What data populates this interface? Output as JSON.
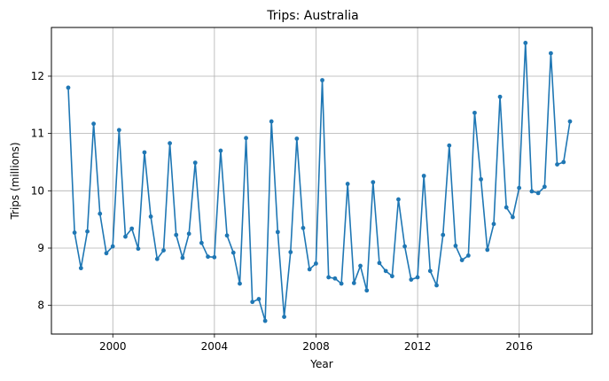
{
  "chart_data": {
    "type": "line",
    "title": "Trips: Australia",
    "xlabel": "Year",
    "ylabel": "Trips (millions)",
    "x_ticks": [
      "2000",
      "2004",
      "2008",
      "2012",
      "2016"
    ],
    "y_ticks": [
      "8",
      "9",
      "10",
      "11",
      "12"
    ],
    "xlim": [
      "1997-08-01",
      "2018-11-15"
    ],
    "ylim": [
      7.5,
      12.85
    ],
    "grid": true,
    "legend": "none",
    "series_color": "#1f77b4",
    "series": [
      {
        "x": [
          "1998-03-31",
          "1998-06-30",
          "1998-09-30",
          "1998-12-31",
          "1999-03-31",
          "1999-06-30",
          "1999-09-30",
          "1999-12-31",
          "2000-03-31",
          "2000-06-30",
          "2000-09-30",
          "2000-12-31",
          "2001-03-31",
          "2001-06-30",
          "2001-09-30",
          "2001-12-31",
          "2002-03-31",
          "2002-06-30",
          "2002-09-30",
          "2002-12-31",
          "2003-03-31",
          "2003-06-30",
          "2003-09-30",
          "2003-12-31",
          "2004-03-31",
          "2004-06-30",
          "2004-09-30",
          "2004-12-31",
          "2005-03-31",
          "2005-06-30",
          "2005-09-30",
          "2005-12-31",
          "2006-03-31",
          "2006-06-30",
          "2006-09-30",
          "2006-12-31",
          "2007-03-31",
          "2007-06-30",
          "2007-09-30",
          "2007-12-31",
          "2008-03-31",
          "2008-06-30",
          "2008-09-30",
          "2008-12-31",
          "2009-03-31",
          "2009-06-30",
          "2009-09-30",
          "2009-12-31",
          "2010-03-31",
          "2010-06-30",
          "2010-09-30",
          "2010-12-31",
          "2011-03-31",
          "2011-06-30",
          "2011-09-30",
          "2011-12-31",
          "2012-03-31",
          "2012-06-30",
          "2012-09-30",
          "2012-12-31",
          "2013-03-31",
          "2013-06-30",
          "2013-09-30",
          "2013-12-31",
          "2014-03-31",
          "2014-06-30",
          "2014-09-30",
          "2014-12-31",
          "2015-03-31",
          "2015-06-30",
          "2015-09-30",
          "2015-12-31",
          "2016-03-31",
          "2016-06-30",
          "2016-09-30",
          "2016-12-31",
          "2017-03-31",
          "2017-06-30",
          "2017-09-30",
          "2017-12-31"
        ],
        "values": [
          11.8,
          9.27,
          8.65,
          9.29,
          11.17,
          9.6,
          8.91,
          9.03,
          11.06,
          9.2,
          9.34,
          8.99,
          10.67,
          9.55,
          8.81,
          8.96,
          10.83,
          9.23,
          8.83,
          9.25,
          10.49,
          9.09,
          8.85,
          8.84,
          10.7,
          9.22,
          8.92,
          8.38,
          10.92,
          8.06,
          8.11,
          7.73,
          11.21,
          9.28,
          7.8,
          8.93,
          10.91,
          9.35,
          8.63,
          8.73,
          11.93,
          8.49,
          8.47,
          8.38,
          10.12,
          8.39,
          8.69,
          8.26,
          10.15,
          8.74,
          8.6,
          8.51,
          9.85,
          9.03,
          8.45,
          8.49,
          10.26,
          8.6,
          8.35,
          9.23,
          10.79,
          9.04,
          8.79,
          8.87,
          11.36,
          10.2,
          8.97,
          9.42,
          11.64,
          9.71,
          9.54,
          10.05,
          12.58,
          9.99,
          9.96,
          10.07,
          12.4,
          10.46,
          10.5,
          11.21
        ]
      }
    ]
  }
}
